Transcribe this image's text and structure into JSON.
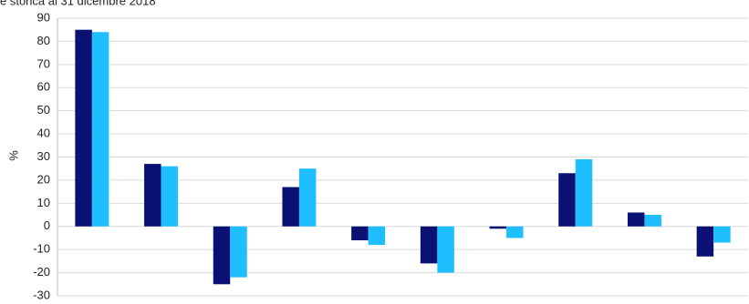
{
  "chart_data": {
    "type": "bar",
    "title": "e storica al 31 dicembre 2018",
    "y_label": "%",
    "categories": [
      null,
      null,
      null,
      null,
      null,
      null,
      null,
      null,
      null,
      null
    ],
    "series": [
      {
        "color": "#0a1172",
        "values": [
          85,
          27,
          -25,
          17,
          -6,
          -16,
          -1,
          23,
          6,
          -13
        ]
      },
      {
        "color": "#1fbfff",
        "values": [
          84,
          26,
          -22,
          25,
          -8,
          -20,
          -5,
          29,
          5,
          -7
        ]
      }
    ],
    "ylim": [
      -30,
      90
    ],
    "yticks": [
      -30,
      -20,
      -10,
      0,
      10,
      20,
      30,
      40,
      50,
      60,
      70,
      80,
      90
    ],
    "grid": true
  }
}
